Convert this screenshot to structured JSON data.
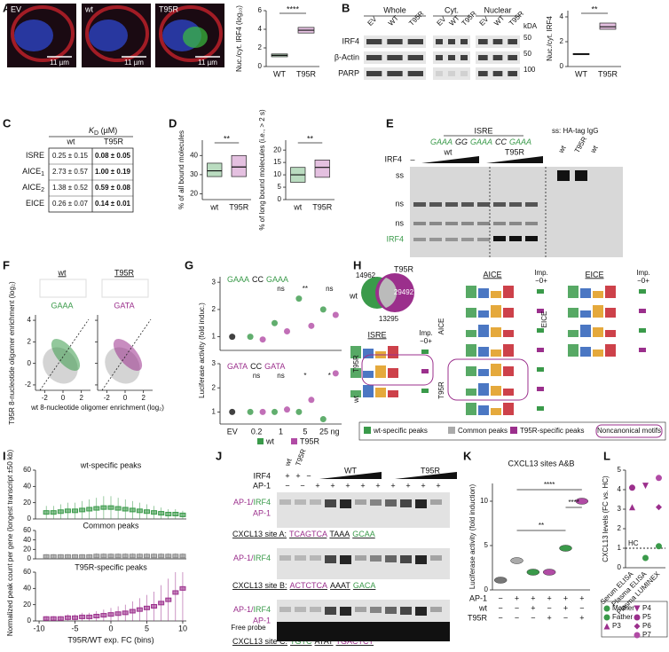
{
  "panels": {
    "A": {
      "letter": "A",
      "images": [
        "EV",
        "wt",
        "T95R"
      ],
      "scale_bar": "11 µm",
      "chart": {
        "type": "box",
        "ylabel": "Nuc./cyt. IRF4 (log₁₀)",
        "categories": [
          "WT",
          "T95R"
        ],
        "colors": [
          "#3a9a4a",
          "#b14ba5"
        ],
        "median": [
          1.2,
          3.9
        ],
        "q1": [
          1.05,
          3.6
        ],
        "q3": [
          1.35,
          4.2
        ],
        "ylim": [
          0,
          6
        ],
        "yticks": [
          0,
          2,
          4,
          6
        ],
        "significance": "****"
      }
    },
    "B": {
      "letter": "B",
      "fractions": [
        "Whole",
        "Cyt.",
        "Nuclear"
      ],
      "lanes": [
        "EV",
        "WT",
        "T95R"
      ],
      "kda_title": "kDA",
      "rows": [
        "IRF4",
        "β-Actin",
        "PARP"
      ],
      "kda": [
        50,
        50,
        100
      ],
      "chart": {
        "type": "box",
        "ylabel": "Nuc./cyt. IRF4",
        "categories": [
          "WT",
          "T95R"
        ],
        "colors": [
          "#3a9a4a",
          "#b14ba5"
        ],
        "median": [
          1,
          3.2
        ],
        "q1": [
          0.95,
          3.0
        ],
        "q3": [
          1.05,
          3.5
        ],
        "ylim": [
          0,
          4.5
        ],
        "yticks": [
          0,
          2,
          4
        ],
        "significance": "**"
      }
    },
    "C": {
      "letter": "C",
      "title": "K",
      "title_sub": "D",
      "title_unit": " (µM)",
      "columns": [
        "wt",
        "T95R"
      ],
      "rows": [
        {
          "name": "ISRE",
          "wt": "0.25 ± 0.15",
          "t95r": "0.08 ± 0.05"
        },
        {
          "name": "AICE",
          "sub": "1",
          "wt": "2.73 ± 0.57",
          "t95r": "1.00 ± 0.19"
        },
        {
          "name": "AICE",
          "sub": "2",
          "wt": "1.38 ± 0.52",
          "t95r": "0.59 ± 0.08"
        },
        {
          "name": "EICE",
          "wt": "0.26 ± 0.07",
          "t95r": "0.14 ± 0.01"
        }
      ]
    },
    "D": {
      "letter": "D",
      "charts": [
        {
          "type": "box",
          "ylabel": "% of all bound molecules",
          "categories": [
            "wt",
            "T95R"
          ],
          "colors": [
            "#3a9a4a",
            "#b14ba5"
          ],
          "median": [
            32,
            34
          ],
          "q1": [
            29,
            29
          ],
          "q3": [
            36,
            40
          ],
          "ylim": [
            17,
            48
          ],
          "yticks": [
            20,
            30,
            40
          ],
          "significance": "**"
        },
        {
          "type": "box",
          "ylabel": "% of long bound molecules (i.e., > 2 s)",
          "categories": [
            "wt",
            "T95R"
          ],
          "colors": [
            "#3a9a4a",
            "#b14ba5"
          ],
          "median": [
            10,
            13
          ],
          "q1": [
            7,
            9
          ],
          "q3": [
            13,
            16
          ],
          "ylim": [
            0,
            24
          ],
          "yticks": [
            0,
            5,
            10,
            15,
            20
          ],
          "significance": "**"
        }
      ]
    },
    "E": {
      "letter": "E",
      "probe": "ISRE",
      "sequence": [
        "GAAA",
        "GG",
        "GAAA",
        "CC",
        "GAAA"
      ],
      "groups": [
        "wt",
        "T95R"
      ],
      "irf4": "IRF4",
      "minus": "–",
      "supershift": "ss: HA-tag IgG",
      "ss_lanes": [
        "wt",
        "T95R",
        "wt"
      ],
      "bands": [
        "ss",
        "ns",
        "ns",
        "IRF4"
      ]
    },
    "F": {
      "letter": "F",
      "groups": [
        "wt",
        "T95R"
      ],
      "motifs": [
        "GAAA",
        "GATA"
      ],
      "ylabel": "T95R 8-nucleotide oligomer enrichment (log₂)",
      "xlabel": "wt 8-nucleotide oligomer enrichment (log₂)",
      "xlim": [
        -3,
        3
      ],
      "xticks": [
        -2,
        0,
        2
      ],
      "ylim": [
        -2.5,
        4.5
      ],
      "yticks": [
        -2,
        0,
        2,
        4
      ]
    },
    "G": {
      "letter": "G",
      "type": "dot",
      "ylabel": "Luciferase activity (fold induc.)",
      "categories": [
        "EV",
        "0.2",
        "1",
        "5",
        "25 ng"
      ],
      "ev_color": "#111",
      "panels": [
        {
          "title": [
            "GAAA",
            "CC",
            "GAAA"
          ],
          "ylim": [
            0.5,
            3.2
          ],
          "yticks": [
            1,
            2,
            3
          ],
          "series": [
            {
              "name": "wt",
              "color": "#3a9a4a",
              "values": [
                1,
                1.0,
                1.5,
                2.4,
                2.0
              ]
            },
            {
              "name": "T95R",
              "color": "#b14ba5",
              "values": [
                null,
                0.9,
                1.2,
                1.4,
                1.8
              ]
            }
          ],
          "significance": [
            null,
            null,
            "ns",
            "**",
            "ns"
          ]
        },
        {
          "title": [
            "GATA",
            "CC",
            "GATA"
          ],
          "ylim": [
            0.5,
            3.0
          ],
          "yticks": [
            1,
            2,
            3
          ],
          "series": [
            {
              "name": "wt",
              "color": "#3a9a4a",
              "values": [
                1,
                1.0,
                1.0,
                1.0,
                0.7
              ]
            },
            {
              "name": "T95R",
              "color": "#b14ba5",
              "values": [
                null,
                1.0,
                1.1,
                1.5,
                2.6
              ]
            }
          ],
          "significance": [
            null,
            "ns",
            "ns",
            "*",
            "*"
          ]
        }
      ],
      "legend": [
        "wt",
        "T95R"
      ]
    },
    "H": {
      "letter": "H",
      "venn": {
        "wt_label": "wt",
        "t95r_label": "T95R",
        "wt_only": 14962,
        "t95r_only": 29492,
        "common": 13295
      },
      "motifs": [
        "AICE",
        "EICE",
        "ISRE"
      ],
      "importance": "Imp.",
      "scale": "−0+",
      "row_labels": [
        "T95R",
        "wt"
      ],
      "legend": [
        "wt-specific peaks",
        "Common peaks",
        "T95R-specific peaks",
        "Noncanonical motifs"
      ]
    },
    "I": {
      "letter": "I",
      "ylabel": "Normalized peak count per gene (longest transcript ±50 kb)",
      "xlabel": "T95R/WT exp. FC (bins)",
      "xlim": [
        -10.5,
        10.5
      ],
      "xticks": [
        -10,
        -5,
        0,
        5,
        10
      ],
      "x": [
        -9,
        -8,
        -7,
        -6,
        -5,
        -4,
        -3,
        -2,
        -1,
        0,
        1,
        2,
        3,
        4,
        5,
        6,
        7,
        8,
        9,
        10
      ],
      "panels": [
        {
          "title": "wt-specific peaks",
          "color": "#3a9a4a",
          "ylim": [
            0,
            60
          ],
          "yticks": [
            0,
            20,
            40,
            60
          ],
          "values": [
            8,
            8,
            9,
            10,
            10,
            11,
            12,
            13,
            14,
            14,
            13,
            12,
            11,
            10,
            9,
            8,
            7,
            6,
            6,
            5
          ]
        },
        {
          "title": "Common peaks",
          "color": "#888888",
          "ylim": [
            0,
            60
          ],
          "yticks": [
            0,
            20,
            40,
            60
          ],
          "values": [
            5,
            5,
            5,
            5,
            5,
            5,
            5,
            6,
            6,
            6,
            6,
            6,
            6,
            6,
            6,
            6,
            6,
            6,
            6,
            6
          ]
        },
        {
          "title": "T95R-specific peaks",
          "color": "#9b2f8c",
          "ylim": [
            0,
            60
          ],
          "yticks": [
            0,
            20,
            40,
            60
          ],
          "values": [
            3,
            3,
            3,
            4,
            4,
            5,
            5,
            6,
            7,
            8,
            9,
            10,
            12,
            14,
            16,
            18,
            22,
            26,
            35,
            40
          ]
        }
      ]
    },
    "J": {
      "letter": "J",
      "lanes": [
        "wt",
        "T95R"
      ],
      "ramps": [
        "WT",
        "T95R"
      ],
      "irf4": "IRF4",
      "ap1": "AP-1",
      "irf4_signs": [
        "+",
        "+",
        "−"
      ],
      "ap1_signs": [
        "−",
        "−",
        "+",
        "+",
        "+",
        "+",
        "+",
        "+",
        "+",
        "+",
        "+"
      ],
      "complex": [
        "AP-1/",
        "IRF4",
        "AP-1"
      ],
      "sites": [
        {
          "label": "CXCL13 site A:",
          "parts": [
            "TCAGTCA",
            "TAAA",
            "GCAA"
          ]
        },
        {
          "label": "CXCL13 site B:",
          "parts": [
            "ACTCTCA",
            "AAAT",
            "GACA"
          ]
        },
        {
          "label": "CXCL13 site C:",
          "parts": [
            "TGTC",
            "ATAT",
            "TGACTCT"
          ]
        }
      ],
      "free_probe": "Free probe"
    },
    "K": {
      "letter": "K",
      "title": "CXCL13 sites A&B",
      "ylabel": "Luciferase activity (fold induction)",
      "values": [
        1.1,
        3.3,
        2.0,
        2.0,
        4.7,
        10.0
      ],
      "colors": [
        "#777777",
        "#aaaaaa",
        "#3a9a4a",
        "#b14ba5",
        "#3a9a4a",
        "#b14ba5"
      ],
      "ylim": [
        0,
        12
      ],
      "yticks": [
        0,
        5,
        10
      ],
      "rows": [
        {
          "name": "AP-1",
          "signs": [
            "−",
            "+",
            "+",
            "+",
            "+",
            "+"
          ]
        },
        {
          "name": "wt",
          "signs": [
            "−",
            "−",
            "+",
            "−",
            "+",
            "−"
          ]
        },
        {
          "name": "T95R",
          "signs": [
            "−",
            "−",
            "−",
            "+",
            "−",
            "+"
          ]
        }
      ],
      "significance": [
        "**",
        "****",
        "****"
      ]
    },
    "L": {
      "letter": "L",
      "ylabel": "CXCL13 levels (FC vs. HC)",
      "categories": [
        "Serum ELISA",
        "Plasma ELISA",
        "Plasma LUMINEX"
      ],
      "ylim": [
        0,
        5
      ],
      "yticks": [
        0,
        1,
        2,
        3,
        4,
        5
      ],
      "reference": {
        "label": "HC",
        "value": 1
      },
      "series": [
        {
          "name": "Mother",
          "color": "#3a9a4a",
          "shape": "circle",
          "values": [
            null,
            null,
            1.1
          ]
        },
        {
          "name": "Father",
          "color": "#3a9a4a",
          "shape": "circle",
          "values": [
            null,
            0.5,
            null
          ]
        },
        {
          "name": "P3",
          "color": "#9b2f8c",
          "shape": "triangle",
          "values": [
            3.1,
            null,
            null
          ]
        },
        {
          "name": "P4",
          "color": "#9b2f8c",
          "shape": "triangle-down",
          "values": [
            null,
            4.2,
            null
          ]
        },
        {
          "name": "P5",
          "color": "#9b2f8c",
          "shape": "circle",
          "values": [
            4.1,
            null,
            null
          ]
        },
        {
          "name": "P6",
          "color": "#9b2f8c",
          "shape": "diamond",
          "values": [
            null,
            null,
            3.1
          ]
        },
        {
          "name": "P7",
          "color": "#b14ba5",
          "shape": "circle",
          "values": [
            null,
            null,
            4.6
          ]
        }
      ]
    }
  }
}
